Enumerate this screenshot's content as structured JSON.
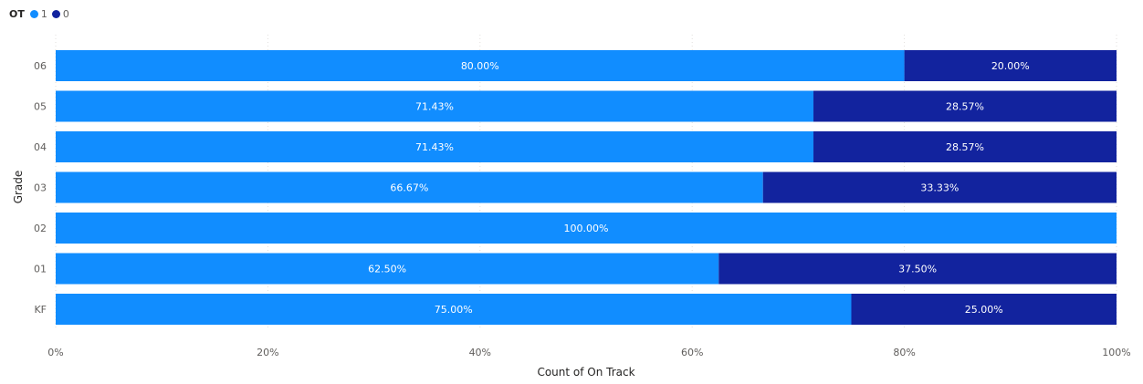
{
  "legend": {
    "title": "OT",
    "items": [
      {
        "label": "1",
        "color": "#118DFF"
      },
      {
        "label": "0",
        "color": "#12239E"
      }
    ]
  },
  "chart_data": {
    "type": "bar",
    "orientation": "horizontal",
    "stacked": "100%",
    "xlabel": "Count of On Track",
    "ylabel": "Grade",
    "xlim": [
      0,
      100
    ],
    "x_ticks": [
      "0%",
      "20%",
      "40%",
      "60%",
      "80%",
      "100%"
    ],
    "grid": true,
    "legend_position": "top-left",
    "categories": [
      "06",
      "05",
      "04",
      "03",
      "02",
      "01",
      "KF"
    ],
    "series": [
      {
        "name": "1",
        "color": "#118DFF",
        "values": [
          80.0,
          71.43,
          71.43,
          66.67,
          100.0,
          62.5,
          75.0
        ],
        "labels": [
          "80.00%",
          "71.43%",
          "71.43%",
          "66.67%",
          "100.00%",
          "62.50%",
          "75.00%"
        ]
      },
      {
        "name": "0",
        "color": "#12239E",
        "values": [
          20.0,
          28.57,
          28.57,
          33.33,
          0,
          37.5,
          25.0
        ],
        "labels": [
          "20.00%",
          "28.57%",
          "28.57%",
          "33.33%",
          "",
          "37.50%",
          "25.00%"
        ]
      }
    ]
  }
}
